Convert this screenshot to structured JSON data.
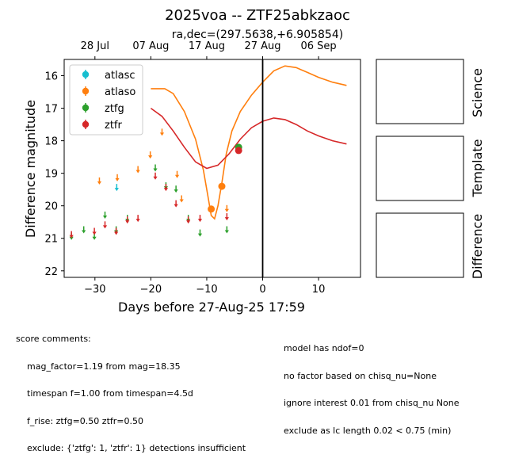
{
  "chart_data": {
    "type": "scatter",
    "title": "2025voa -- ZTF25abkzaoc",
    "subtitle": "ra,dec=(297.5638,+6.905854)",
    "xlabel": "Days before 27-Aug-25 17:59",
    "ylabel": "Difference magnitude",
    "xlim": [
      -35.5,
      17.5
    ],
    "ylim": [
      22.2,
      15.5
    ],
    "y_inverted": true,
    "x_ticks": [
      -30,
      -20,
      -10,
      0,
      10
    ],
    "x_tick_labels": [
      "−30",
      "−20",
      "−10",
      "0",
      "10"
    ],
    "y_ticks": [
      16,
      17,
      18,
      19,
      20,
      21,
      22
    ],
    "y_tick_labels": [
      "16",
      "17",
      "18",
      "19",
      "20",
      "21",
      "22"
    ],
    "top_axis": {
      "labels": [
        "28 Jul",
        "07 Aug",
        "17 Aug",
        "27 Aug",
        "06 Sep"
      ],
      "positions": [
        -30,
        -20,
        -10,
        0,
        10
      ]
    },
    "reference_line_x": 0,
    "legend": {
      "placement": "top-left",
      "entries": [
        {
          "name": "atlasc",
          "color": "#17becf"
        },
        {
          "name": "atlaso",
          "color": "#ff7f0e"
        },
        {
          "name": "ztfg",
          "color": "#2ca02c"
        },
        {
          "name": "ztfr",
          "color": "#d62728"
        }
      ]
    },
    "series": [
      {
        "name": "atlasc",
        "color": "#17becf",
        "upper_limits": [
          [
            -26.1,
            19.45
          ]
        ],
        "detections": []
      },
      {
        "name": "atlaso",
        "color": "#ff7f0e",
        "upper_limits": [
          [
            -29.2,
            19.25
          ],
          [
            -26.0,
            19.15
          ],
          [
            -22.3,
            18.9
          ],
          [
            -20.1,
            18.45
          ],
          [
            -18.0,
            17.75
          ],
          [
            -15.3,
            19.05
          ],
          [
            -14.5,
            19.8
          ],
          [
            -6.4,
            20.1
          ]
        ],
        "detections": [
          [
            -9.2,
            20.1
          ],
          [
            -7.3,
            19.4
          ]
        ]
      },
      {
        "name": "ztfg",
        "color": "#2ca02c",
        "upper_limits": [
          [
            -34.2,
            20.95
          ],
          [
            -32.0,
            20.75
          ],
          [
            -30.1,
            20.95
          ],
          [
            -28.2,
            20.3
          ],
          [
            -26.2,
            20.75
          ],
          [
            -24.2,
            20.4
          ],
          [
            -19.2,
            18.85
          ],
          [
            -17.3,
            19.4
          ],
          [
            -15.5,
            19.5
          ],
          [
            -13.3,
            20.4
          ],
          [
            -11.2,
            20.85
          ],
          [
            -6.4,
            20.75
          ]
        ],
        "detections": [
          [
            -4.3,
            18.2
          ]
        ]
      },
      {
        "name": "ztfr",
        "color": "#d62728",
        "upper_limits": [
          [
            -34.2,
            20.9
          ],
          [
            -30.1,
            20.8
          ],
          [
            -28.2,
            20.6
          ],
          [
            -26.2,
            20.8
          ],
          [
            -24.2,
            20.45
          ],
          [
            -22.3,
            20.4
          ],
          [
            -19.2,
            19.1
          ],
          [
            -17.3,
            19.45
          ],
          [
            -15.5,
            19.95
          ],
          [
            -13.3,
            20.45
          ],
          [
            -11.2,
            20.4
          ],
          [
            -6.4,
            20.35
          ]
        ],
        "detections": [
          [
            -4.3,
            18.3
          ]
        ]
      }
    ],
    "model_curves": [
      {
        "band": "atlaso",
        "color": "#ff7f0e",
        "points": [
          [
            -20,
            16.4
          ],
          [
            -17.5,
            16.4
          ],
          [
            -16,
            16.55
          ],
          [
            -14,
            17.1
          ],
          [
            -12,
            17.95
          ],
          [
            -10.6,
            18.9
          ],
          [
            -9.8,
            19.7
          ],
          [
            -9.2,
            20.3
          ],
          [
            -8.6,
            20.4
          ],
          [
            -8,
            20.0
          ],
          [
            -7.3,
            19.3
          ],
          [
            -6.5,
            18.4
          ],
          [
            -5.5,
            17.7
          ],
          [
            -4,
            17.1
          ],
          [
            -2,
            16.6
          ],
          [
            0,
            16.2
          ],
          [
            2,
            15.85
          ],
          [
            4,
            15.7
          ],
          [
            6,
            15.75
          ],
          [
            8,
            15.9
          ],
          [
            10,
            16.05
          ],
          [
            12.5,
            16.2
          ],
          [
            15,
            16.3
          ]
        ]
      },
      {
        "band": "ztfr",
        "color": "#d62728",
        "points": [
          [
            -20,
            17.0
          ],
          [
            -18,
            17.25
          ],
          [
            -16,
            17.7
          ],
          [
            -14,
            18.2
          ],
          [
            -12,
            18.65
          ],
          [
            -10,
            18.85
          ],
          [
            -8,
            18.75
          ],
          [
            -6,
            18.4
          ],
          [
            -4,
            17.95
          ],
          [
            -2,
            17.6
          ],
          [
            0,
            17.4
          ],
          [
            2,
            17.3
          ],
          [
            4,
            17.35
          ],
          [
            6,
            17.5
          ],
          [
            8,
            17.7
          ],
          [
            10,
            17.85
          ],
          [
            12.5,
            18.0
          ],
          [
            15,
            18.1
          ]
        ]
      }
    ]
  },
  "image_panels": [
    "Science",
    "Template",
    "Difference"
  ],
  "score_comments": {
    "heading": "score comments:",
    "left": [
      "mag_factor=1.19 from mag=18.35",
      "timespan f=1.00 from timespan=4.5d",
      "f_rise: ztfg=0.50 ztfr=0.50",
      "exclude: {'ztfg': 1, 'ztfr': 1} detections insufficient"
    ],
    "right": [
      "model has ndof=0",
      "no factor based on chisq_nu=None",
      "ignore interest 0.01 from chisq_nu None",
      "exclude as lc length 0.02 < 0.75 (min)"
    ]
  }
}
